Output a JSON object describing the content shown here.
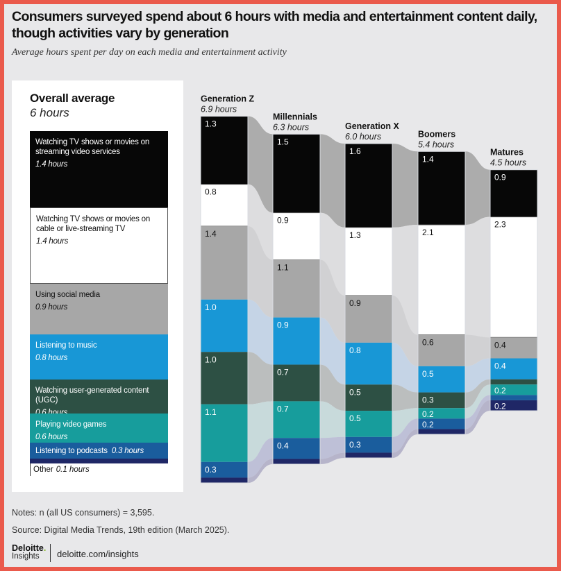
{
  "header": {
    "title": "Consumers surveyed spend about 6 hours with media and entertainment content daily, though activities vary by generation",
    "subtitle": "Average hours spent per day on each media and entertainment activity"
  },
  "legend": {
    "title": "Overall average",
    "total": "6 hours",
    "items": [
      {
        "label": "Watching TV shows or movies on streaming video services",
        "hours": "1.4 hours",
        "value": 1.4,
        "color": "#070707",
        "text_color": "#ffffff"
      },
      {
        "label": "Watching TV shows or movies on cable or live-streaming TV",
        "hours": "1.4 hours",
        "value": 1.4,
        "color": "#ffffff",
        "text_color": "#111111"
      },
      {
        "label": "Using social media",
        "hours": "0.9 hours",
        "value": 0.9,
        "color": "#a7a7a7",
        "text_color": "#111111"
      },
      {
        "label": "Listening to music",
        "hours": "0.8 hours",
        "value": 0.8,
        "color": "#1897d6",
        "text_color": "#ffffff"
      },
      {
        "label": "Watching user-generated content (UGC)",
        "hours": "0.6 hours",
        "value": 0.6,
        "color": "#2d5044",
        "text_color": "#ffffff"
      },
      {
        "label": "Playing video games",
        "hours": "0.6 hours",
        "value": 0.6,
        "color": "#179d9c",
        "text_color": "#ffffff"
      },
      {
        "label": "Listening to podcasts",
        "hours": "0.3 hours",
        "value": 0.3,
        "color": "#1a5d9d",
        "text_color": "#ffffff"
      },
      {
        "label": "Other",
        "hours": "0.1 hours",
        "value": 0.1,
        "color": "#1f2766",
        "text_color": "#111111"
      }
    ]
  },
  "chart_data": {
    "type": "bar",
    "subtype": "stacked-alluvial",
    "title": "Consumers surveyed spend about 6 hours with media and entertainment content daily, though activities vary by generation",
    "subtitle": "Average hours spent per day on each media and entertainment activity",
    "units": "hours per day",
    "categories": [
      "Generation Z",
      "Millennials",
      "Generation X",
      "Boomers",
      "Matures"
    ],
    "totals": [
      "6.9 hours",
      "6.3 hours",
      "6.0 hours",
      "5.4 hours",
      "4.5 hours"
    ],
    "series": [
      {
        "name": "Watching TV shows or movies on streaming video services",
        "values": [
          1.3,
          1.5,
          1.6,
          1.4,
          0.9
        ],
        "labels": [
          "1.3",
          "1.5",
          "1.6",
          "1.4",
          "0.9"
        ]
      },
      {
        "name": "Watching TV shows or movies on cable or live-streaming TV",
        "values": [
          0.8,
          0.9,
          1.3,
          2.1,
          2.3
        ],
        "labels": [
          "0.8",
          "0.9",
          "1.3",
          "2.1",
          "2.3"
        ]
      },
      {
        "name": "Using social media",
        "values": [
          1.4,
          1.1,
          0.9,
          0.6,
          0.4
        ],
        "labels": [
          "1.4",
          "1.1",
          "0.9",
          "0.6",
          "0.4"
        ]
      },
      {
        "name": "Listening to music",
        "values": [
          1.0,
          0.9,
          0.8,
          0.5,
          0.4
        ],
        "labels": [
          "1.0",
          "0.9",
          "0.8",
          "0.5",
          "0.4"
        ]
      },
      {
        "name": "Watching user-generated content (UGC)",
        "values": [
          1.0,
          0.7,
          0.5,
          0.3,
          0.1
        ],
        "labels": [
          "1.0",
          "0.7",
          "0.5",
          "0.3",
          ""
        ]
      },
      {
        "name": "Playing video games",
        "values": [
          1.1,
          0.7,
          0.5,
          0.2,
          0.2
        ],
        "labels": [
          "1.1",
          "0.7",
          "0.5",
          "0.2",
          "0.2"
        ]
      },
      {
        "name": "Listening to podcasts",
        "values": [
          0.3,
          0.4,
          0.3,
          0.2,
          0.1
        ],
        "labels": [
          "0.3",
          "0.4",
          "0.3",
          "0.2",
          ""
        ]
      },
      {
        "name": "Other",
        "values": [
          0.1,
          0.1,
          0.1,
          0.1,
          0.2
        ],
        "labels": [
          "",
          "",
          "",
          "",
          "0.2"
        ]
      }
    ],
    "colors": [
      "#070707",
      "#ffffff",
      "#a7a7a7",
      "#1897d6",
      "#2d5044",
      "#179d9c",
      "#1a5d9d",
      "#1f2766"
    ],
    "ribbon_colors": [
      "#a9a9a9",
      "#dcdcde",
      "#d0d0d2",
      "#c3d3e6",
      "#b8bcbc",
      "#c6d9da",
      "#bcbed6",
      "#b3b1c8"
    ],
    "label_colors": [
      "#ffffff",
      "#111111",
      "#111111",
      "#ffffff",
      "#ffffff",
      "#ffffff",
      "#ffffff",
      "#ffffff"
    ],
    "legend": "left-panel",
    "grid": false
  },
  "footer": {
    "notes": "Notes: n (all US consumers) = 3,595.",
    "source": "Source: Digital Media Trends, 19th edition (March 2025).",
    "logo_brand": "Deloitte",
    "logo_dot": ".",
    "logo_sub": "Insights",
    "site": "deloitte.com/insights"
  }
}
